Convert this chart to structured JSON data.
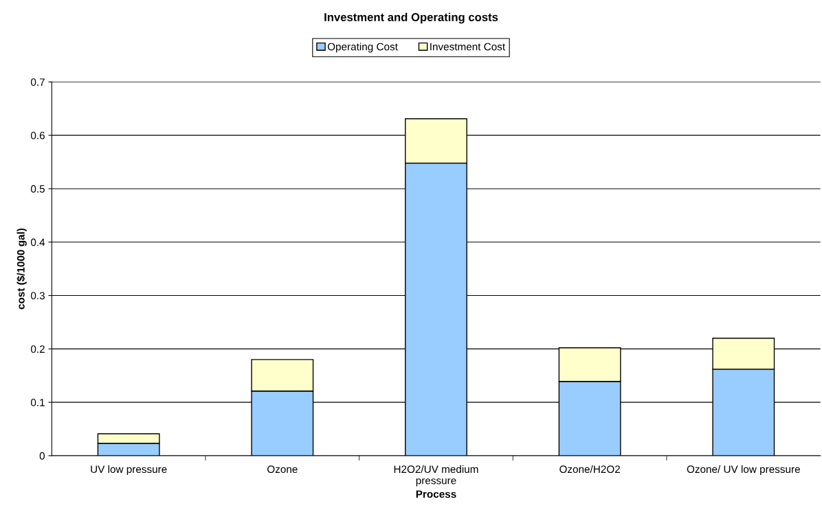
{
  "chart_data": {
    "type": "bar",
    "title": "Investment and Operating costs",
    "xlabel": "Process",
    "ylabel": "cost ($/1000 gal)",
    "categories": [
      "UV low pressure",
      "Ozone",
      "H2O2/UV medium\npressure",
      "Ozone/H2O2",
      "Ozone/ UV low pressure"
    ],
    "stacked": true,
    "series": [
      {
        "name": "Operating Cost",
        "color": "#99ccff",
        "values": [
          0.023,
          0.121,
          0.548,
          0.139,
          0.162
        ]
      },
      {
        "name": "Investment Cost",
        "color": "#ffffcc",
        "values": [
          0.018,
          0.059,
          0.083,
          0.063,
          0.058
        ]
      }
    ],
    "ylim": [
      0,
      0.7
    ],
    "yticks": [
      0,
      0.1,
      0.2,
      0.3,
      0.4,
      0.5,
      0.6,
      0.7
    ],
    "grid": "y",
    "legend": "top"
  }
}
